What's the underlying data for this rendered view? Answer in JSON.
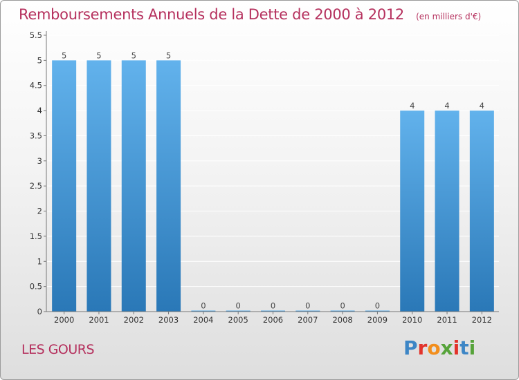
{
  "title": "Remboursements Annuels de la Dette de 2000 à 2012",
  "subtitle": "(en milliers d'€)",
  "commune": "LES GOURS",
  "logo": {
    "text": "Proxiti",
    "letter_colors": [
      "#3d86c6",
      "#e2332b",
      "#f28e1c",
      "#56a33a",
      "#e2332b",
      "#3d86c6",
      "#56a33a"
    ]
  },
  "colors": {
    "bar_light": "#62b2ec",
    "bar_dark": "#2a78b7",
    "title": "#b5305d"
  },
  "chart_data": {
    "type": "bar",
    "title": "Remboursements Annuels de la Dette de 2000 à 2012",
    "subtitle": "(en milliers d'€)",
    "categories": [
      "2000",
      "2001",
      "2002",
      "2003",
      "2004",
      "2005",
      "2006",
      "2007",
      "2008",
      "2009",
      "2010",
      "2011",
      "2012"
    ],
    "values": [
      5,
      5,
      5,
      5,
      0,
      0,
      0,
      0,
      0,
      0,
      4,
      4,
      4
    ],
    "ylim": [
      0,
      5.5
    ],
    "yticks": [
      "0",
      "0.5",
      "1",
      "1.5",
      "2",
      "2.5",
      "3",
      "3.5",
      "4",
      "4.5",
      "5",
      "5.5"
    ],
    "grid": true
  }
}
